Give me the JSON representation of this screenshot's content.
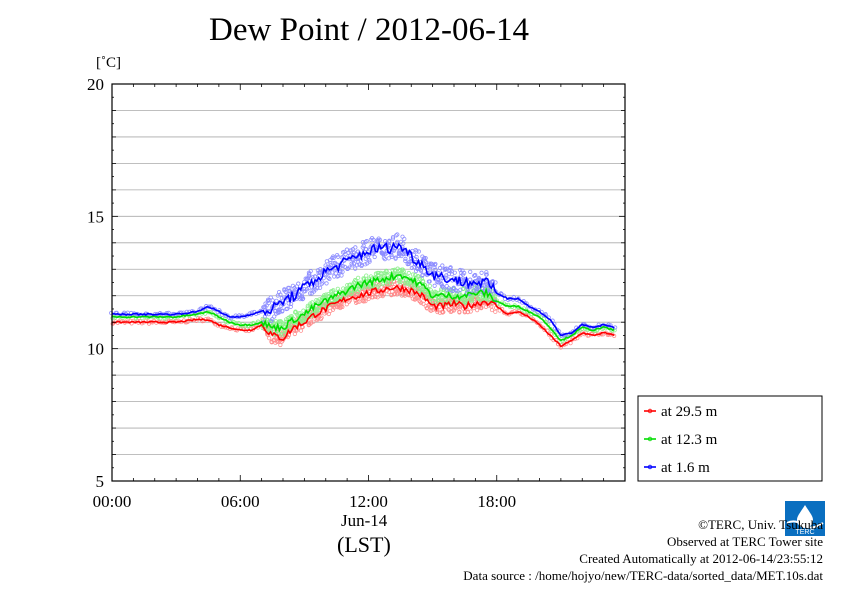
{
  "title": "Dew Point / 2012-06-14",
  "y_unit": "[˚C]",
  "x_date_label": "Jun-14",
  "x_timezone_label": "(LST)",
  "footer": {
    "copyright": "©TERC, Univ. Tsukuba",
    "site": "Observed at TERC Tower site",
    "created": "Created Automatically at 2012-06-14/23:55:12",
    "source": "Data source : /home/hojyo/new/TERC-data/sorted_data/MET.10s.dat"
  },
  "logo_text": "TERC",
  "chart_data": {
    "type": "line",
    "title": "Dew Point / 2012-06-14",
    "ylabel": "[˚C]",
    "xlabel": "(LST)",
    "ylim": [
      5,
      20
    ],
    "xlim": [
      0,
      24
    ],
    "y_ticks": [
      "5",
      "10",
      "15",
      "20"
    ],
    "x_ticks": [
      "00:00",
      "06:00",
      "12:00",
      "18:00"
    ],
    "grid": true,
    "legend_position": "bottom-right",
    "colors": {
      "at 29.5 m": "#ff0000",
      "at 12.3 m": "#00dd00",
      "at 1.6 m": "#0000ff"
    },
    "x": [
      0,
      1,
      2,
      3,
      4,
      4.5,
      5,
      5.5,
      6,
      6.5,
      7,
      7.5,
      8,
      8.5,
      9,
      9.5,
      10,
      10.5,
      11,
      11.5,
      12,
      12.5,
      13,
      13.5,
      14,
      14.5,
      15,
      15.5,
      16,
      16.5,
      17,
      17.5,
      18,
      18.5,
      19,
      19.5,
      20,
      20.5,
      21,
      21.5,
      22,
      22.5,
      23,
      23.5
    ],
    "series": [
      {
        "name": "at 29.5 m",
        "values": [
          11.0,
          11.0,
          11.0,
          11.0,
          11.1,
          11.1,
          10.9,
          10.8,
          10.7,
          10.7,
          10.9,
          10.5,
          10.4,
          10.8,
          11.0,
          11.3,
          11.5,
          11.7,
          11.9,
          12.0,
          12.1,
          12.2,
          12.3,
          12.3,
          12.2,
          12.0,
          11.6,
          11.6,
          11.7,
          11.6,
          11.7,
          11.8,
          11.6,
          11.3,
          11.4,
          11.2,
          10.9,
          10.5,
          10.1,
          10.3,
          10.6,
          10.5,
          10.6,
          10.5
        ]
      },
      {
        "name": "at 12.3 m",
        "values": [
          11.2,
          11.2,
          11.2,
          11.2,
          11.3,
          11.4,
          11.2,
          11.0,
          10.9,
          10.9,
          11.0,
          10.8,
          10.8,
          11.1,
          11.3,
          11.6,
          11.8,
          12.0,
          12.2,
          12.4,
          12.5,
          12.6,
          12.7,
          12.8,
          12.6,
          12.4,
          12.0,
          12.0,
          12.0,
          12.0,
          12.1,
          12.1,
          11.8,
          11.6,
          11.6,
          11.4,
          11.2,
          10.8,
          10.3,
          10.5,
          10.8,
          10.7,
          10.8,
          10.7
        ]
      },
      {
        "name": "at 1.6 m",
        "values": [
          11.3,
          11.3,
          11.3,
          11.3,
          11.4,
          11.6,
          11.4,
          11.2,
          11.2,
          11.3,
          11.4,
          11.5,
          11.8,
          12.0,
          12.3,
          12.6,
          12.9,
          13.1,
          13.3,
          13.5,
          13.7,
          13.8,
          13.8,
          13.9,
          13.5,
          13.2,
          12.8,
          12.7,
          12.6,
          12.5,
          12.5,
          12.5,
          12.1,
          11.9,
          11.9,
          11.6,
          11.4,
          11.1,
          10.5,
          10.6,
          10.9,
          10.8,
          10.9,
          10.8
        ]
      }
    ]
  }
}
